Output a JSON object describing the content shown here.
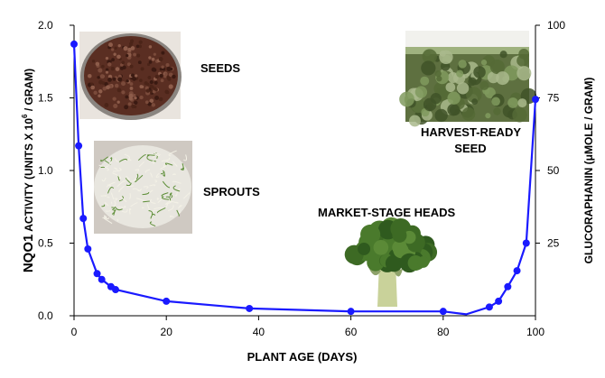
{
  "chart_data": {
    "type": "line",
    "xlabel": "PLANT AGE (DAYS)",
    "ylabel": {
      "main": "NQO1",
      "suffix_pre": " ACTIVITY (UNITS X 10",
      "sup": "6",
      "suffix_post": " / GRAM)"
    },
    "y2label": "GLUCORAPHANIN (μMOLE / GRAM)",
    "xlim": [
      0,
      100
    ],
    "ylim": [
      0,
      2.0
    ],
    "y2lim": [
      0,
      100
    ],
    "x_ticks": [
      "0",
      "20",
      "40",
      "60",
      "80",
      "100"
    ],
    "y_ticks": [
      "0.0",
      "0.5",
      "1.0",
      "1.5",
      "2.0"
    ],
    "y2_ticks": [
      "25",
      "50",
      "75",
      "100"
    ],
    "series_color": "#1a1aff",
    "series": [
      {
        "points": [
          [
            0,
            1.87
          ],
          [
            1,
            1.17
          ],
          [
            2,
            0.67
          ],
          [
            3,
            0.46
          ],
          [
            5,
            0.29
          ],
          [
            6,
            0.25
          ],
          [
            8,
            0.2
          ],
          [
            9,
            0.18
          ],
          [
            20,
            0.1
          ],
          [
            38,
            0.05
          ],
          [
            60,
            0.03
          ],
          [
            80,
            0.03
          ],
          [
            85,
            0.01
          ],
          [
            90,
            0.06
          ],
          [
            92,
            0.1
          ],
          [
            94,
            0.2
          ],
          [
            96,
            0.31
          ],
          [
            98,
            0.5
          ],
          [
            100,
            1.49
          ]
        ],
        "markers": [
          [
            0,
            1.87
          ],
          [
            1,
            1.17
          ],
          [
            2,
            0.67
          ],
          [
            3,
            0.46
          ],
          [
            5,
            0.29
          ],
          [
            6,
            0.25
          ],
          [
            8,
            0.2
          ],
          [
            9,
            0.18
          ],
          [
            20,
            0.1
          ],
          [
            38,
            0.05
          ],
          [
            60,
            0.03
          ],
          [
            80,
            0.03
          ],
          [
            90,
            0.06
          ],
          [
            92,
            0.1
          ],
          [
            94,
            0.2
          ],
          [
            96,
            0.31
          ],
          [
            98,
            0.5
          ],
          [
            100,
            1.49
          ]
        ]
      }
    ],
    "annotations": {
      "seeds": "SEEDS",
      "sprouts": "SPROUTS",
      "market": "MARKET-STAGE HEADS",
      "harvest_line1": "HARVEST-READY",
      "harvest_line2": "SEED"
    }
  }
}
